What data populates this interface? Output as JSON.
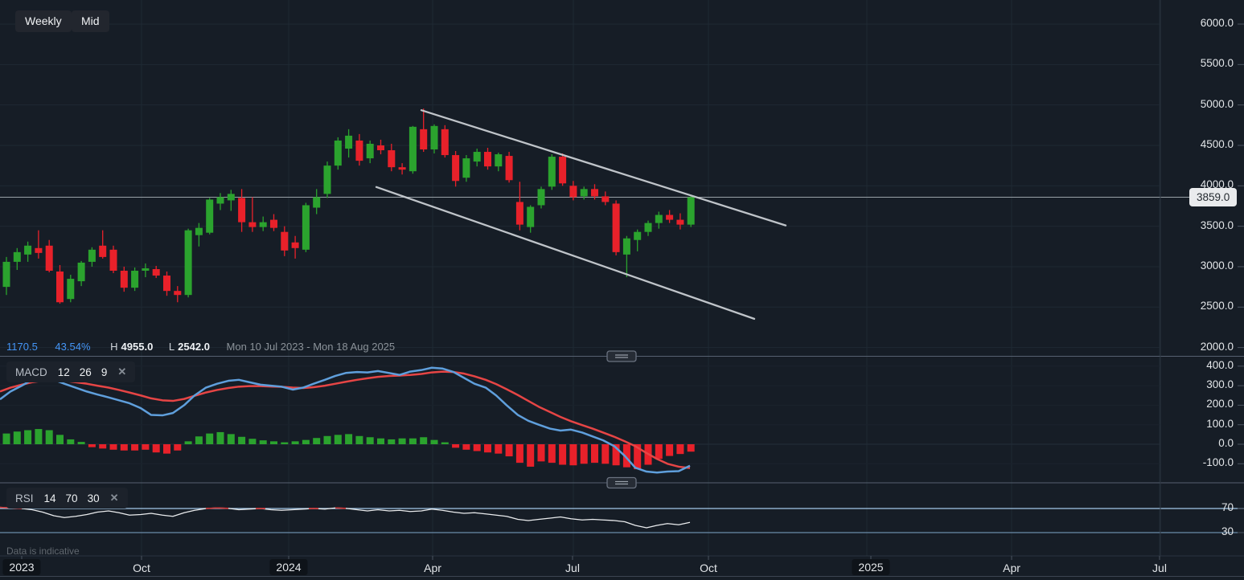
{
  "toolbar": {
    "timeframe_label": "Weekly",
    "price_type_label": "Mid"
  },
  "status_bar": {
    "change_value": "1170.5",
    "change_percent": "43.54%",
    "high_label": "H",
    "high_value": "4955.0",
    "low_label": "L",
    "low_value": "2542.0",
    "date_range": "Mon 10 Jul 2023 - Mon 18 Aug 2025"
  },
  "price_badge": {
    "value": "3859.0"
  },
  "indicators": {
    "macd": {
      "name": "MACD",
      "params": [
        "12",
        "26",
        "9"
      ],
      "close_glyph": "✕"
    },
    "rsi": {
      "name": "RSI",
      "params": [
        "14",
        "70",
        "30"
      ],
      "close_glyph": "✕"
    }
  },
  "footer": {
    "disclaimer": "Data is indicative"
  },
  "colors": {
    "background": "#161d26",
    "grid": "#1f2933",
    "bullish": "#2ba32e",
    "bearish": "#e8212a",
    "macd_line": "#5f9fdc",
    "macd_signal": "#e64545",
    "rsi_line": "#e9ebed",
    "rsi_overbought_line": "#a3c9ea",
    "rsi_oversold_line": "#7fa6c9",
    "trendline": "#c9cdd2",
    "accent_blue_text": "#4495f6",
    "current_price_line": "#99a1a8",
    "separator": "#566070",
    "axis_tick": "#4a5360",
    "badge_bg": "#e9ebed"
  },
  "chart_data": {
    "type": "candlestick",
    "title": "",
    "price_pane": {
      "y_ticks": [
        6000,
        5500,
        5000,
        4500,
        4000,
        3500,
        3000,
        2500,
        2000
      ],
      "ylim": [
        1970,
        6300
      ],
      "current_price": 3859.0,
      "high_shown": 4955.0,
      "low_shown": 2542.0,
      "candles": [
        [
          2750,
          3120,
          2650,
          3060
        ],
        [
          3060,
          3230,
          2960,
          3180
        ],
        [
          3150,
          3310,
          3060,
          3260
        ],
        [
          3230,
          3450,
          3100,
          3170
        ],
        [
          3260,
          3330,
          2930,
          2950
        ],
        [
          2940,
          3020,
          2542,
          2560
        ],
        [
          2600,
          2900,
          2560,
          2850
        ],
        [
          2820,
          3070,
          2760,
          3050
        ],
        [
          3060,
          3240,
          3000,
          3210
        ],
        [
          3260,
          3450,
          3100,
          3120
        ],
        [
          3210,
          3260,
          2920,
          2950
        ],
        [
          2950,
          3000,
          2690,
          2740
        ],
        [
          2740,
          2990,
          2700,
          2950
        ],
        [
          2950,
          3040,
          2870,
          2980
        ],
        [
          2970,
          3010,
          2860,
          2890
        ],
        [
          2890,
          2940,
          2640,
          2700
        ],
        [
          2700,
          2760,
          2560,
          2650
        ],
        [
          2650,
          3470,
          2620,
          3450
        ],
        [
          3390,
          3540,
          3250,
          3480
        ],
        [
          3420,
          3850,
          3400,
          3830
        ],
        [
          3780,
          3910,
          3700,
          3860
        ],
        [
          3820,
          3950,
          3690,
          3900
        ],
        [
          3850,
          3960,
          3430,
          3550
        ],
        [
          3550,
          3860,
          3430,
          3490
        ],
        [
          3490,
          3620,
          3440,
          3550
        ],
        [
          3580,
          3650,
          3440,
          3480
        ],
        [
          3430,
          3500,
          3130,
          3200
        ],
        [
          3300,
          3380,
          3100,
          3230
        ],
        [
          3210,
          3790,
          3180,
          3760
        ],
        [
          3730,
          3960,
          3650,
          3860
        ],
        [
          3900,
          4300,
          3850,
          4250
        ],
        [
          4250,
          4600,
          4200,
          4560
        ],
        [
          4460,
          4700,
          4350,
          4620
        ],
        [
          4560,
          4640,
          4250,
          4310
        ],
        [
          4340,
          4560,
          4280,
          4520
        ],
        [
          4500,
          4570,
          4390,
          4440
        ],
        [
          4440,
          4520,
          4180,
          4230
        ],
        [
          4230,
          4280,
          4140,
          4200
        ],
        [
          4180,
          4740,
          4150,
          4730
        ],
        [
          4700,
          4955,
          4420,
          4450
        ],
        [
          4450,
          4760,
          4400,
          4740
        ],
        [
          4700,
          4750,
          4350,
          4380
        ],
        [
          4380,
          4430,
          3990,
          4060
        ],
        [
          4100,
          4380,
          4050,
          4340
        ],
        [
          4300,
          4460,
          4240,
          4420
        ],
        [
          4420,
          4470,
          4200,
          4240
        ],
        [
          4240,
          4410,
          4180,
          4390
        ],
        [
          4370,
          4420,
          4040,
          4070
        ],
        [
          3800,
          4050,
          3450,
          3520
        ],
        [
          3490,
          3760,
          3420,
          3740
        ],
        [
          3760,
          3990,
          3720,
          3960
        ],
        [
          3990,
          4390,
          3950,
          4360
        ],
        [
          4360,
          4400,
          4000,
          4030
        ],
        [
          4000,
          4060,
          3820,
          3860
        ],
        [
          3870,
          3990,
          3830,
          3960
        ],
        [
          3960,
          4020,
          3830,
          3870
        ],
        [
          3870,
          3930,
          3760,
          3800
        ],
        [
          3780,
          3820,
          3140,
          3180
        ],
        [
          3150,
          3380,
          2870,
          3350
        ],
        [
          3330,
          3460,
          3190,
          3430
        ],
        [
          3430,
          3570,
          3380,
          3540
        ],
        [
          3540,
          3680,
          3470,
          3640
        ],
        [
          3640,
          3700,
          3540,
          3580
        ],
        [
          3580,
          3660,
          3460,
          3520
        ],
        [
          3520,
          3880,
          3490,
          3859
        ]
      ],
      "trendlines": [
        {
          "x1": 524,
          "p1": 4935,
          "x2": 977,
          "p2": 3510
        },
        {
          "x1": 468,
          "p1": 3985,
          "x2": 938,
          "p2": 2355
        }
      ]
    },
    "indicator_x": [
      0,
      13,
      27,
      40,
      53,
      67,
      80,
      94,
      108,
      121,
      135,
      148,
      161,
      175,
      188,
      202,
      215,
      229,
      242,
      256,
      270,
      284,
      297,
      310,
      324,
      337,
      350,
      364,
      377,
      390,
      404,
      417,
      430,
      444,
      457,
      470,
      484,
      497,
      510,
      524,
      537,
      550,
      564,
      577,
      590,
      604,
      617,
      630,
      644,
      657,
      670,
      684,
      697,
      710,
      724,
      737,
      750,
      764,
      777,
      790,
      804,
      817,
      830,
      844,
      858
    ],
    "macd_pane": {
      "y_ticks": [
        400,
        300,
        200,
        100,
        0,
        -100
      ],
      "histogram": [
        55,
        65,
        72,
        78,
        72,
        48,
        25,
        12,
        -15,
        -22,
        -28,
        -32,
        -32,
        -28,
        -42,
        -48,
        -32,
        15,
        40,
        55,
        62,
        52,
        38,
        28,
        20,
        15,
        10,
        15,
        22,
        32,
        42,
        48,
        52,
        42,
        36,
        30,
        25,
        30,
        30,
        36,
        22,
        10,
        -18,
        -28,
        -35,
        -42,
        -48,
        -62,
        -95,
        -115,
        -88,
        -95,
        -105,
        -108,
        -100,
        -95,
        -100,
        -108,
        -118,
        -128,
        -105,
        -75,
        -60,
        -50,
        -38
      ],
      "macd_line": [
        230,
        270,
        300,
        330,
        340,
        330,
        310,
        290,
        270,
        255,
        240,
        225,
        210,
        185,
        150,
        148,
        160,
        200,
        250,
        290,
        310,
        325,
        330,
        318,
        305,
        300,
        295,
        280,
        290,
        310,
        330,
        350,
        365,
        370,
        368,
        375,
        365,
        355,
        372,
        380,
        392,
        388,
        370,
        340,
        310,
        290,
        250,
        200,
        150,
        120,
        100,
        80,
        70,
        75,
        60,
        40,
        20,
        -10,
        -60,
        -120,
        -140,
        -145,
        -140,
        -138,
        -110
      ],
      "signal_line": [
        270,
        290,
        305,
        318,
        325,
        328,
        325,
        318,
        310,
        300,
        290,
        278,
        265,
        250,
        235,
        225,
        222,
        232,
        248,
        265,
        278,
        288,
        295,
        298,
        298,
        296,
        294,
        290,
        288,
        292,
        300,
        310,
        320,
        330,
        338,
        345,
        350,
        352,
        355,
        360,
        368,
        372,
        370,
        362,
        348,
        330,
        308,
        282,
        252,
        222,
        192,
        165,
        140,
        118,
        98,
        80,
        60,
        38,
        15,
        -10,
        -45,
        -75,
        -100,
        -115,
        -122
      ]
    },
    "rsi_pane": {
      "y_ticks": [
        70,
        30
      ],
      "overbought": 70,
      "oversold": 30,
      "values": [
        72,
        71,
        70,
        68,
        64,
        58,
        55,
        57,
        60,
        64,
        66,
        63,
        59,
        60,
        62,
        59,
        57,
        63,
        67,
        70,
        71,
        70.3,
        68,
        69,
        70,
        68,
        67,
        68,
        69,
        70,
        69,
        71,
        70.3,
        68,
        66,
        68,
        66,
        67,
        65,
        66,
        69,
        67,
        64,
        62,
        63,
        61,
        59,
        57,
        52,
        50,
        52,
        54,
        56,
        53,
        51,
        52,
        51,
        50,
        48,
        42,
        38,
        42,
        45,
        43,
        47
      ]
    },
    "x_axis": {
      "labels": [
        {
          "text": "2023",
          "x": 27,
          "boxed": true
        },
        {
          "text": "Oct",
          "x": 176,
          "boxed": false
        },
        {
          "text": "2024",
          "x": 359,
          "boxed": true
        },
        {
          "text": "Apr",
          "x": 538,
          "boxed": false
        },
        {
          "text": "Jul",
          "x": 712,
          "boxed": false
        },
        {
          "text": "Oct",
          "x": 881,
          "boxed": false
        },
        {
          "text": "2025",
          "x": 1083,
          "boxed": true
        },
        {
          "text": "Apr",
          "x": 1258,
          "boxed": false
        },
        {
          "text": "Jul",
          "x": 1442,
          "boxed": false
        }
      ],
      "gridlines_x": [
        176,
        359,
        538,
        713,
        881,
        1078,
        1258,
        1442
      ]
    }
  }
}
